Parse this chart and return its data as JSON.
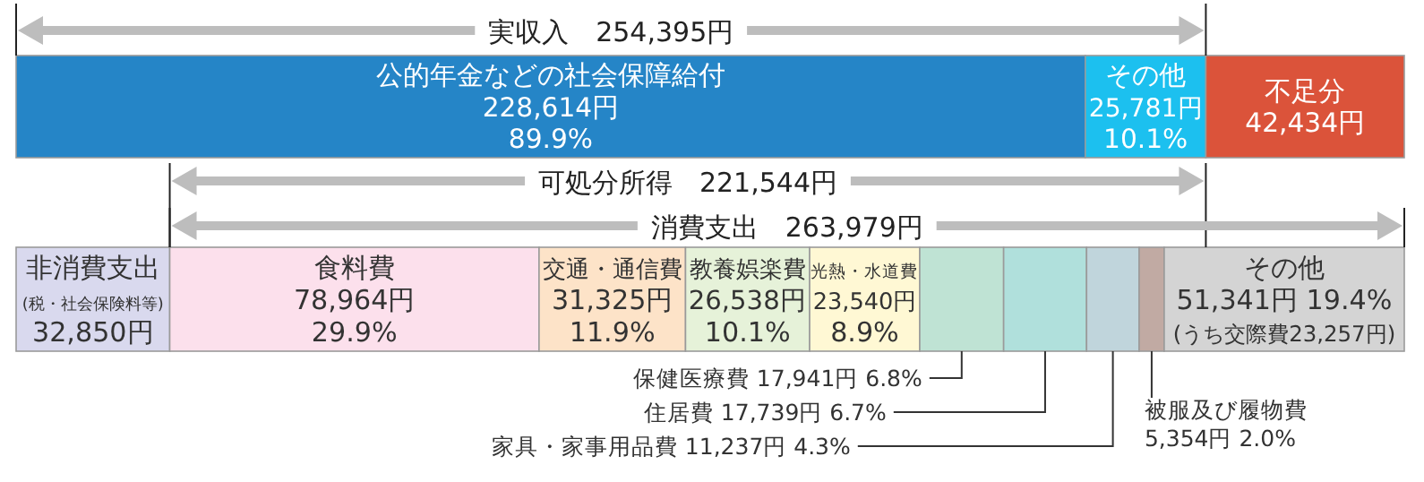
{
  "chart_data": {
    "type": "bar",
    "orientation": "horizontal",
    "stacked": true,
    "categories": [
      null,
      null
    ],
    "series": [
      {
        "name": "公的年金などの社会保障給付",
        "color": "#2585c7",
        "values": [
          228614,
          null
        ],
        "value_labels": [
          "228,614円\n89.9%",
          null
        ]
      },
      {
        "name": "その他",
        "color": "#1cc0ef",
        "values": [
          25781,
          null
        ],
        "value_labels": [
          "25,781円\n10.1%",
          null
        ]
      },
      {
        "name": "不足分",
        "color": "#db533a",
        "values": [
          42434,
          null
        ],
        "value_labels": [
          "42,434円",
          null
        ]
      },
      {
        "name": "非消費支出\n(税・社会保険料等)",
        "color": "#d9d9ee",
        "values": [
          null,
          32850
        ],
        "value_labels": [
          null,
          "32,850円"
        ]
      },
      {
        "name": "食料費",
        "color": "#fce0ec",
        "values": [
          null,
          78964
        ],
        "value_labels": [
          null,
          "78,964円\n29.9%"
        ]
      },
      {
        "name": "交通・通信費",
        "color": "#fde3c8",
        "values": [
          null,
          31325
        ],
        "value_labels": [
          null,
          "31,325円\n11.9%"
        ]
      },
      {
        "name": "教養娯楽費",
        "color": "#e6f2d9",
        "values": [
          null,
          26538
        ],
        "value_labels": [
          null,
          "26,538円\n10.1%"
        ]
      },
      {
        "name": "光熱・水道費",
        "color": "#fff8d4",
        "values": [
          null,
          23540
        ],
        "value_labels": [
          null,
          "23,540円\n8.9%"
        ]
      },
      {
        "name": "保健医療費",
        "color": "#bfe3d4",
        "values": [
          null,
          17941
        ],
        "value_labels": [
          null,
          "17,941円 6.8%"
        ]
      },
      {
        "name": "住居費",
        "color": "#b0e0dc",
        "values": [
          null,
          17739
        ],
        "value_labels": [
          null,
          "17,739円 6.7%"
        ]
      },
      {
        "name": "家具・家事用品費",
        "color": "#c0d5dc",
        "values": [
          null,
          11237
        ],
        "value_labels": [
          null,
          "11,237円 4.3%"
        ]
      },
      {
        "name": "被服及び履物費",
        "color": "#c1aaa3",
        "values": [
          null,
          5354
        ],
        "value_labels": [
          null,
          "5,354円 2.0%"
        ]
      },
      {
        "name": "その他",
        "color": "#d4d4d4",
        "values": [
          null,
          51341
        ],
        "value_labels": [
          null,
          "51,341円 19.4%\n(うち交際費23,257円)"
        ]
      }
    ],
    "annotations": [
      "実収入　254,395円",
      "可処分所得　221,544円",
      "消費支出　263,979円"
    ]
  }
}
